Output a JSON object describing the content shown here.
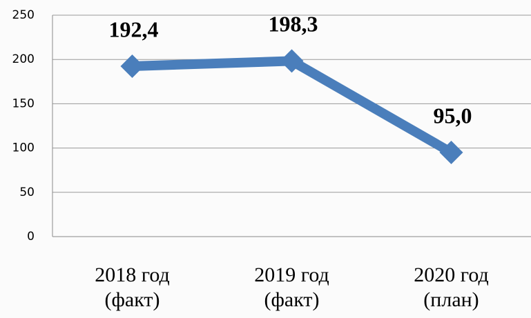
{
  "chart_data": {
    "type": "line",
    "categories": [
      "2018 год\n(факт)",
      "2019 год\n(факт)",
      "2020 год\n(план)"
    ],
    "values": [
      192.4,
      198.3,
      95.0
    ],
    "value_labels": [
      "192,4",
      "198,3",
      "95,0"
    ],
    "color": "#4a7ebb",
    "ylim": [
      0,
      250
    ],
    "yticks": [
      0,
      50,
      100,
      150,
      200,
      250
    ],
    "grid": true
  }
}
